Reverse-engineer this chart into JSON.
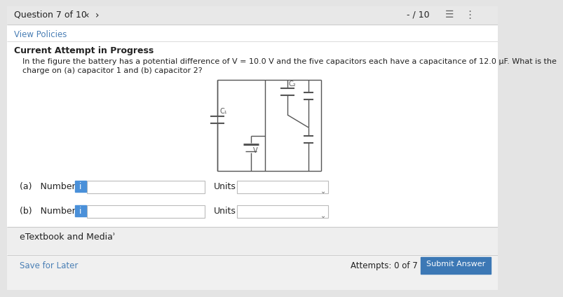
{
  "bg_color": "#e4e4e4",
  "white": "#ffffff",
  "blue_link": "#4a7fb5",
  "blue_btn": "#3c78b5",
  "dark_text": "#222222",
  "gray_text": "#555555",
  "light_gray": "#d0d0d0",
  "header_text": "Question 7 of 10",
  "nav_left": "‹",
  "nav_right": "›",
  "score_text": "- / 10",
  "view_policies": "View Policies",
  "current_attempt": "Current Attempt in Progress",
  "question_text": "In the figure the battery has a potential difference of V = 10.0 V and the five capacitors each have a capacitance of 12.0 μF. What is the",
  "question_text2": "charge on (a) capacitor 1 and (b) capacitor 2?",
  "label_a": "(a)   Number",
  "label_b": "(b)   Number",
  "units_label": "Units",
  "etextbook": "eTextbook and Mediaʾ",
  "save_later": "Save for Later",
  "attempts_text": "Attempts: 0 of 7 used",
  "submit_text": "Submit Answer",
  "info_icon_color": "#4a90d9",
  "divider_color": "#cccccc",
  "header_bg": "#e8e8e8",
  "input_border": "#bbbbbb",
  "circuit_color": "#555555"
}
